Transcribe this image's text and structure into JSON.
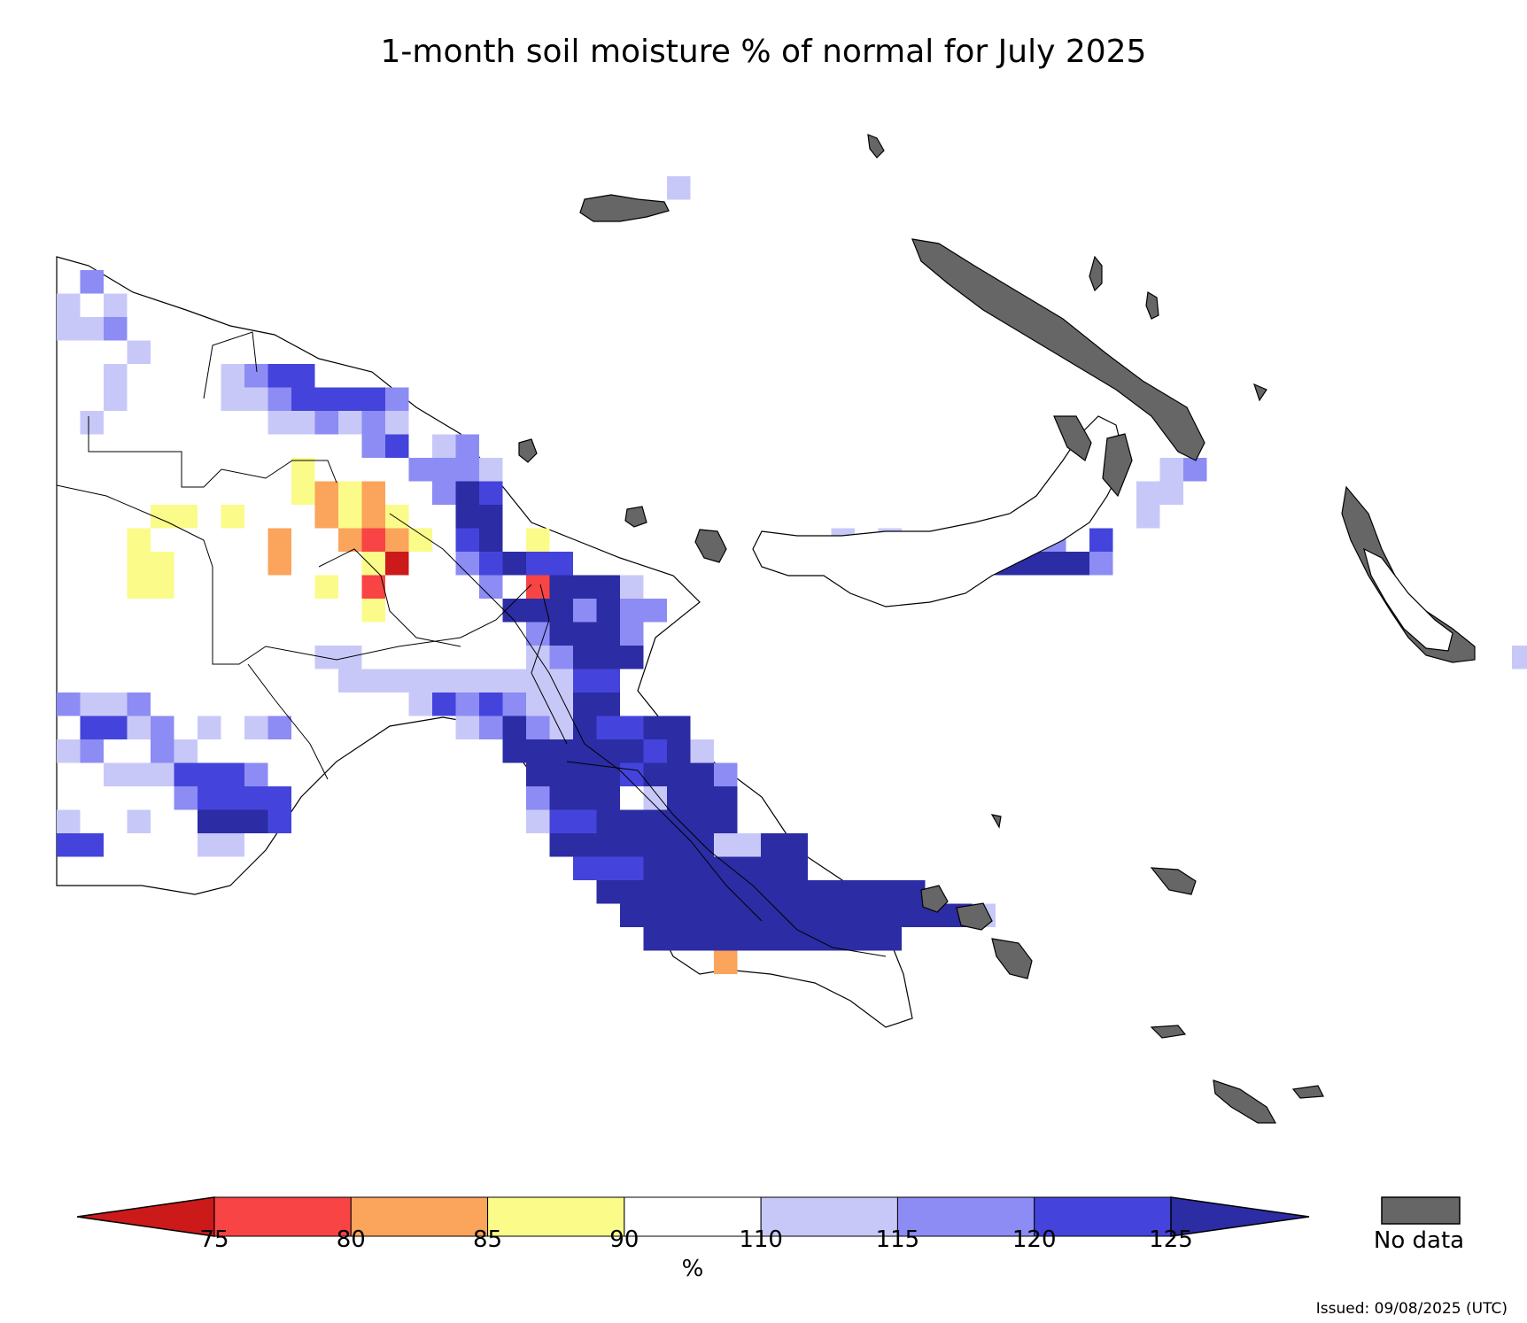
{
  "title": "1-month soil moisture % of normal for July 2025",
  "colors": {
    "no_data": "#666666",
    "outline": "#000000",
    "bins": [
      "#cc1a1a",
      "#f84444",
      "#faa45c",
      "#fbfb8a",
      "#ffffff",
      "#c8c8f8",
      "#8c8cf4",
      "#4444dc",
      "#2c2ca4"
    ]
  },
  "colorbar": {
    "ticks": [
      "75",
      "80",
      "85",
      "90",
      "110",
      "115",
      "120",
      "125"
    ],
    "unit": "%",
    "extend": "both"
  },
  "legend": {
    "no_data_label": "No data"
  },
  "issued": "Issued: 09/08/2025 (UTC)"
}
